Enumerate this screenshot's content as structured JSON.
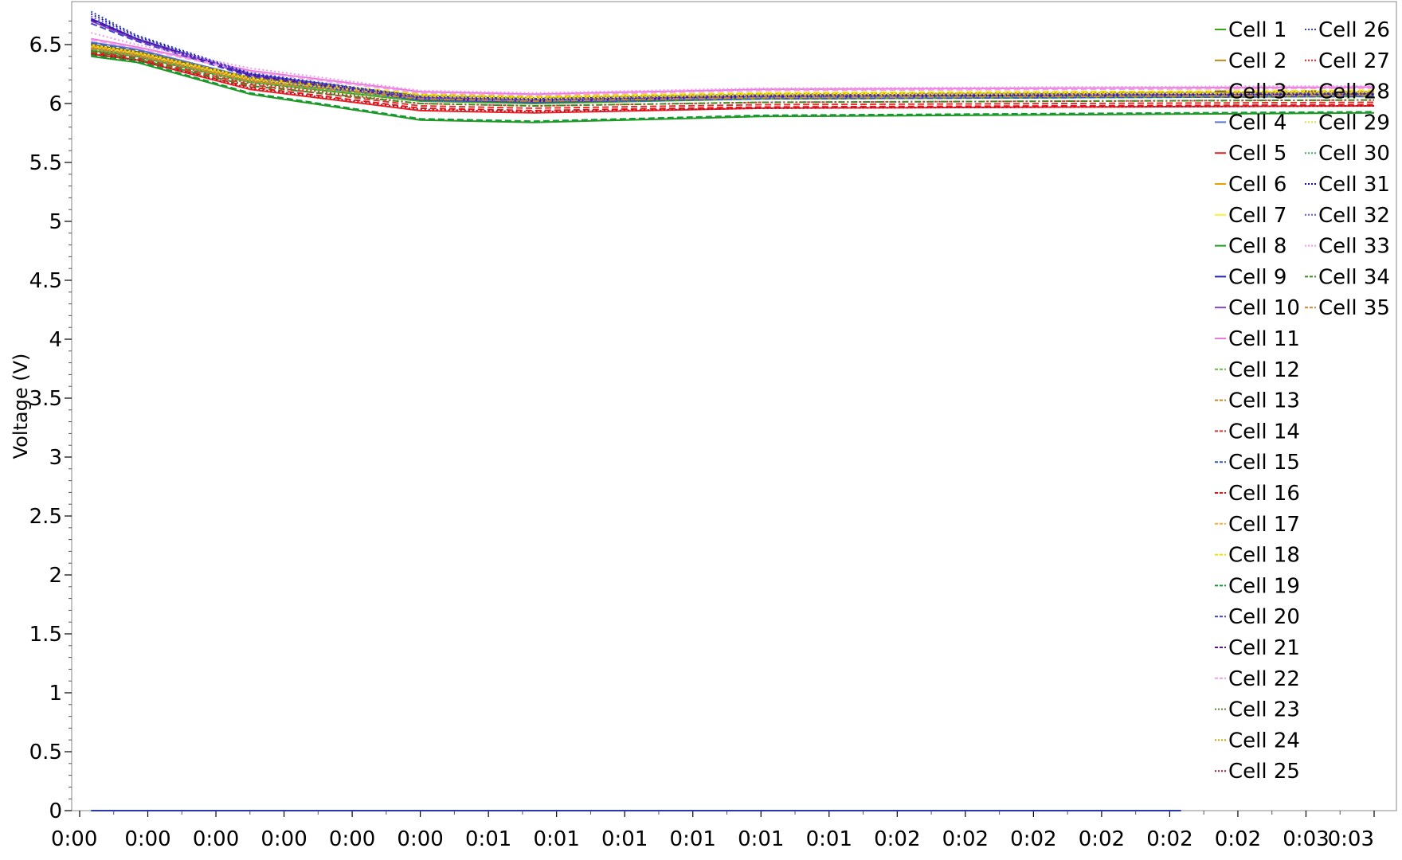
{
  "chart_data": {
    "type": "line",
    "title": "",
    "xlabel": "",
    "ylabel": "Voltage (V)",
    "ylim": [
      0,
      6.8
    ],
    "grid": false,
    "legend_position": "top-right",
    "x_tick_labels": [
      "0:00",
      "0:00",
      "0:00",
      "0:00",
      "0:00",
      "0:00",
      "0:01",
      "0:01",
      "0:01",
      "0:01",
      "0:01",
      "0:01",
      "0:02",
      "0:02",
      "0:02",
      "0:02",
      "0:02",
      "0:02",
      "0:03",
      "0:03"
    ],
    "y_ticks": [
      0,
      0.5,
      1,
      1.5,
      2,
      2.5,
      3,
      3.5,
      4,
      4.5,
      5,
      5.5,
      6,
      6.5
    ],
    "y_tick_labels": [
      "0",
      "0.5",
      "1",
      "1.5",
      "2",
      "2.5",
      "3",
      "3.5",
      "4",
      "4.5",
      "5",
      "5.5",
      "6",
      "6.5"
    ],
    "x_ticks": [
      0,
      6,
      12,
      18,
      24,
      30,
      36,
      42,
      48,
      54,
      60,
      66,
      72,
      78,
      84,
      90,
      96,
      102,
      108,
      114
    ],
    "xlim": [
      0,
      114
    ],
    "series": [
      {
        "name": "Cell 1",
        "color": "#33aa11",
        "dash": "solid",
        "x": [
          1,
          5,
          15,
          30,
          40,
          60,
          114
        ],
        "values": [
          6.45,
          6.4,
          6.18,
          6.02,
          6.0,
          6.04,
          6.06
        ]
      },
      {
        "name": "Cell 2",
        "color": "#bb8811",
        "dash": "solid",
        "x": [
          1,
          5,
          15,
          30,
          40,
          60,
          114
        ],
        "values": [
          6.48,
          6.42,
          6.2,
          6.04,
          6.02,
          6.05,
          6.07
        ]
      },
      {
        "name": "Cell 3",
        "color": "#7a6a00",
        "dash": "solid",
        "x": [
          1,
          5,
          15,
          30,
          40,
          60,
          114
        ],
        "values": [
          6.5,
          6.44,
          6.22,
          6.05,
          6.03,
          6.06,
          6.08
        ]
      },
      {
        "name": "Cell 4",
        "color": "#5577cc",
        "dash": "solid",
        "x": [
          1,
          5,
          15,
          30,
          40,
          60,
          114
        ],
        "values": [
          6.52,
          6.46,
          6.22,
          6.04,
          6.02,
          6.05,
          6.07
        ]
      },
      {
        "name": "Cell 5",
        "color": "#ee2222",
        "dash": "solid",
        "x": [
          1,
          5,
          15,
          30,
          40,
          60,
          114
        ],
        "values": [
          6.42,
          6.37,
          6.12,
          5.94,
          5.92,
          5.96,
          5.98
        ]
      },
      {
        "name": "Cell 6",
        "color": "#e6a000",
        "dash": "solid",
        "x": [
          1,
          5,
          15,
          30,
          40,
          60,
          114
        ],
        "values": [
          6.47,
          6.41,
          6.19,
          6.05,
          6.03,
          6.06,
          6.08
        ]
      },
      {
        "name": "Cell 7",
        "color": "#ffee33",
        "dash": "solid",
        "x": [
          1,
          5,
          15,
          30,
          40,
          60,
          114
        ],
        "values": [
          6.49,
          6.43,
          6.21,
          6.07,
          6.05,
          6.08,
          6.1
        ]
      },
      {
        "name": "Cell 8",
        "color": "#229922",
        "dash": "solid",
        "x": [
          1,
          5,
          15,
          30,
          40,
          60,
          114
        ],
        "values": [
          6.4,
          6.35,
          6.08,
          5.86,
          5.84,
          5.89,
          5.92
        ]
      },
      {
        "name": "Cell 9",
        "color": "#2222bb",
        "dash": "solid",
        "x": [
          1,
          5,
          15,
          30,
          40,
          60,
          114
        ],
        "values": [
          6.72,
          6.55,
          6.25,
          6.06,
          6.04,
          6.07,
          6.09
        ]
      },
      {
        "name": "Cell 10",
        "color": "#8844cc",
        "dash": "solid",
        "x": [
          1,
          5,
          15,
          30,
          40,
          60,
          114
        ],
        "values": [
          6.7,
          6.54,
          6.24,
          6.05,
          6.03,
          6.07,
          6.09
        ]
      },
      {
        "name": "Cell 11",
        "color": "#ee77dd",
        "dash": "solid",
        "x": [
          1,
          5,
          15,
          30,
          40,
          60,
          114
        ],
        "values": [
          6.55,
          6.48,
          6.28,
          6.1,
          6.08,
          6.12,
          6.14
        ]
      },
      {
        "name": "Cell 12",
        "color": "#66bb44",
        "dash": "dash",
        "x": [
          1,
          5,
          15,
          30,
          40,
          60,
          114
        ],
        "values": [
          6.46,
          6.4,
          6.18,
          6.03,
          6.01,
          6.04,
          6.06
        ]
      },
      {
        "name": "Cell 13",
        "color": "#cc8822",
        "dash": "dash",
        "x": [
          1,
          5,
          15,
          30,
          40,
          60,
          114
        ],
        "values": [
          6.48,
          6.42,
          6.2,
          6.04,
          6.02,
          6.05,
          6.07
        ]
      },
      {
        "name": "Cell 14",
        "color": "#dd3333",
        "dash": "dash",
        "x": [
          1,
          5,
          15,
          30,
          40,
          60,
          114
        ],
        "values": [
          6.44,
          6.39,
          6.16,
          5.98,
          5.96,
          5.99,
          6.01
        ]
      },
      {
        "name": "Cell 15",
        "color": "#3355cc",
        "dash": "dash",
        "x": [
          1,
          5,
          15,
          30,
          40,
          60,
          114
        ],
        "values": [
          6.51,
          6.45,
          6.21,
          6.03,
          6.01,
          6.04,
          6.06
        ]
      },
      {
        "name": "Cell 16",
        "color": "#ee1111",
        "dash": "dash",
        "x": [
          1,
          5,
          15,
          30,
          40,
          60,
          114
        ],
        "values": [
          6.43,
          6.38,
          6.14,
          5.96,
          5.94,
          5.97,
          5.99
        ]
      },
      {
        "name": "Cell 17",
        "color": "#ffaa33",
        "dash": "dash",
        "x": [
          1,
          5,
          15,
          30,
          40,
          60,
          114
        ],
        "values": [
          6.49,
          6.43,
          6.21,
          6.06,
          6.04,
          6.07,
          6.09
        ]
      },
      {
        "name": "Cell 18",
        "color": "#f0e000",
        "dash": "dash",
        "x": [
          1,
          5,
          15,
          30,
          40,
          60,
          114
        ],
        "values": [
          6.5,
          6.44,
          6.22,
          6.08,
          6.06,
          6.09,
          6.11
        ]
      },
      {
        "name": "Cell 19",
        "color": "#119933",
        "dash": "dash",
        "x": [
          1,
          5,
          15,
          30,
          40,
          60,
          114
        ],
        "values": [
          6.41,
          6.36,
          6.09,
          5.87,
          5.85,
          5.9,
          5.93
        ]
      },
      {
        "name": "Cell 20",
        "color": "#4444cc",
        "dash": "dash",
        "x": [
          1,
          5,
          15,
          30,
          40,
          60,
          114
        ],
        "values": [
          6.68,
          6.53,
          6.23,
          6.03,
          6.01,
          6.05,
          6.07
        ]
      },
      {
        "name": "Cell 21",
        "color": "#551199",
        "dash": "dash",
        "x": [
          1,
          5,
          15,
          30,
          40,
          60,
          114
        ],
        "values": [
          6.71,
          6.55,
          6.24,
          6.04,
          6.02,
          6.06,
          6.08
        ]
      },
      {
        "name": "Cell 22",
        "color": "#f0a0e8",
        "dash": "dash",
        "x": [
          1,
          5,
          15,
          30,
          40,
          60,
          114
        ],
        "values": [
          6.54,
          6.47,
          6.27,
          6.09,
          6.07,
          6.11,
          6.13
        ]
      },
      {
        "name": "Cell 23",
        "color": "#558833",
        "dash": "dot",
        "x": [
          1,
          5,
          15,
          30,
          40,
          60,
          114
        ],
        "values": [
          6.47,
          6.41,
          6.19,
          6.06,
          6.04,
          6.07,
          6.09
        ]
      },
      {
        "name": "Cell 24",
        "color": "#bbaa00",
        "dash": "dot",
        "x": [
          1,
          5,
          15,
          30,
          40,
          60,
          114
        ],
        "values": [
          6.49,
          6.43,
          6.21,
          6.07,
          6.05,
          6.08,
          6.1
        ]
      },
      {
        "name": "Cell 25",
        "color": "#aa1133",
        "dash": "dot",
        "x": [
          1,
          5,
          15,
          30,
          40,
          60,
          114
        ],
        "values": [
          6.42,
          6.37,
          6.13,
          5.95,
          5.93,
          5.96,
          5.98
        ]
      },
      {
        "name": "Cell 26",
        "color": "#3344aa",
        "dash": "dot",
        "x": [
          1,
          5,
          15,
          30,
          40,
          60,
          114
        ],
        "values": [
          6.78,
          6.58,
          6.26,
          6.06,
          6.04,
          6.07,
          6.09
        ]
      },
      {
        "name": "Cell 27",
        "color": "#dd2222",
        "dash": "dot",
        "x": [
          1,
          5,
          15,
          30,
          40,
          60,
          114
        ],
        "values": [
          6.45,
          6.4,
          6.17,
          6.0,
          5.98,
          6.01,
          6.03
        ]
      },
      {
        "name": "Cell 28",
        "color": "#886600",
        "dash": "dot",
        "x": [
          1,
          5,
          15,
          30,
          40,
          60,
          114
        ],
        "values": [
          6.5,
          6.44,
          6.22,
          6.06,
          6.04,
          6.07,
          6.09
        ]
      },
      {
        "name": "Cell 29",
        "color": "#dddd44",
        "dash": "dot",
        "x": [
          1,
          5,
          15,
          30,
          40,
          60,
          114
        ],
        "values": [
          6.48,
          6.42,
          6.2,
          6.06,
          6.04,
          6.07,
          6.09
        ]
      },
      {
        "name": "Cell 30",
        "color": "#44aa66",
        "dash": "dot",
        "x": [
          1,
          5,
          15,
          30,
          40,
          60,
          114
        ],
        "values": [
          6.46,
          6.4,
          6.18,
          6.04,
          6.02,
          6.05,
          6.07
        ]
      },
      {
        "name": "Cell 31",
        "color": "#1111aa",
        "dash": "dot",
        "x": [
          1,
          5,
          15,
          30,
          40,
          60,
          114
        ],
        "values": [
          6.76,
          6.57,
          6.25,
          6.05,
          6.03,
          6.06,
          6.08
        ]
      },
      {
        "name": "Cell 32",
        "color": "#6655dd",
        "dash": "dot",
        "x": [
          1,
          5,
          15,
          30,
          40,
          60,
          114
        ],
        "values": [
          6.74,
          6.56,
          6.25,
          6.05,
          6.03,
          6.06,
          6.08
        ]
      },
      {
        "name": "Cell 33",
        "color": "#ee99ee",
        "dash": "dot",
        "x": [
          1,
          5,
          15,
          30,
          40,
          60,
          114
        ],
        "values": [
          6.6,
          6.5,
          6.3,
          6.11,
          6.09,
          6.13,
          6.15
        ]
      },
      {
        "name": "Cell 34",
        "color": "#448822",
        "dash": "dashdot",
        "x": [
          1,
          5,
          15,
          30,
          40,
          60,
          114
        ],
        "values": [
          6.44,
          6.38,
          6.15,
          6.0,
          5.98,
          6.01,
          6.03
        ]
      },
      {
        "name": "Cell 35",
        "color": "#cc8833",
        "dash": "dashdot",
        "x": [
          1,
          5,
          15,
          30,
          40,
          60,
          114
        ],
        "values": [
          6.47,
          6.41,
          6.19,
          6.04,
          6.02,
          6.05,
          6.07
        ]
      },
      {
        "name": "",
        "color": "#2233dd",
        "dash": "solid",
        "x": [
          1,
          97
        ],
        "values": [
          0,
          0
        ]
      }
    ]
  }
}
